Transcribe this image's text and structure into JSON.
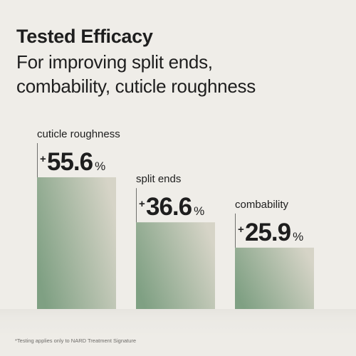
{
  "header": {
    "title": "Tested Efficacy",
    "subtitle_lines": [
      "For improving split ends,",
      "combability, cuticle roughness"
    ]
  },
  "chart_data": {
    "type": "bar",
    "title": "Tested Efficacy",
    "categories": [
      "cuticle roughness",
      "split ends",
      "combability"
    ],
    "values": [
      55.6,
      36.6,
      25.9
    ],
    "value_labels": [
      "55.6",
      "36.6",
      "25.9"
    ],
    "value_prefix": "+",
    "value_suffix": "%",
    "xlabel": "",
    "ylabel": "",
    "ylim": [
      0,
      55.6
    ],
    "grid": false,
    "legend": "none",
    "colors": {
      "bar_light": "#d6d4c7",
      "bar_dark": "#7fa083",
      "text": "#1e1e1e"
    }
  },
  "footnote": "*Testing applies only to NARD Treatment Signature"
}
